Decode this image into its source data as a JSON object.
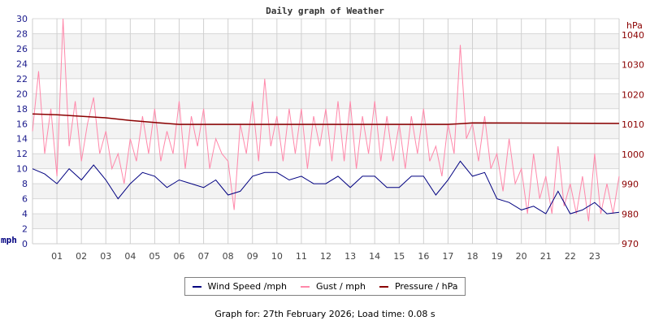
{
  "chart_data": {
    "type": "line",
    "title": "Daily graph of Weather",
    "x_ticks": [
      "01",
      "02",
      "03",
      "04",
      "05",
      "06",
      "07",
      "08",
      "09",
      "10",
      "11",
      "12",
      "13",
      "14",
      "15",
      "16",
      "17",
      "18",
      "19",
      "20",
      "21",
      "22",
      "23"
    ],
    "xlim_hours": [
      0,
      24
    ],
    "left_axis": {
      "label": "mph",
      "ylim": [
        0,
        30
      ],
      "ticks": [
        0,
        2,
        4,
        6,
        8,
        10,
        12,
        14,
        16,
        18,
        20,
        22,
        24,
        26,
        28,
        30
      ],
      "color": "#1a1a8c"
    },
    "right_axis": {
      "label": "hPa",
      "ylim": [
        970,
        1045.4
      ],
      "ticks": [
        970,
        980,
        990,
        1000,
        1010,
        1020,
        1030,
        1040
      ],
      "color": "#8b0000"
    },
    "grid": true,
    "series": [
      {
        "name": "Wind Speed /mph",
        "axis": "left",
        "color": "#000080",
        "x_step_hours": 0.5,
        "values": [
          10,
          9.3,
          8,
          10,
          8.5,
          10.5,
          8.5,
          6,
          8,
          9.5,
          9,
          7.5,
          8.5,
          8,
          7.5,
          8.5,
          6.5,
          7,
          9,
          9.5,
          9.5,
          8.5,
          9,
          8,
          8,
          9,
          7.5,
          9,
          9,
          7.5,
          7.5,
          9,
          9,
          6.5,
          8.5,
          11,
          9,
          9.5,
          6,
          5.5,
          4.5,
          5,
          4,
          7,
          4,
          4.5,
          5.5,
          4,
          4.2
        ]
      },
      {
        "name": "Gust / mph",
        "axis": "left",
        "color": "#ff88aa",
        "x_step_hours": 0.25,
        "values": [
          15,
          23,
          12,
          18,
          9,
          30,
          13,
          19,
          11,
          16,
          19.5,
          12,
          15,
          10,
          12,
          8,
          14,
          11,
          17,
          12,
          18,
          11,
          15,
          12,
          19,
          10,
          17,
          13,
          18,
          10,
          14,
          12,
          11,
          4.5,
          16,
          12,
          19,
          11,
          22,
          13,
          17,
          11,
          18,
          12,
          18,
          10,
          17,
          13,
          18,
          11,
          19,
          11,
          19,
          10,
          17,
          12,
          19,
          11,
          17,
          11,
          16,
          10,
          17,
          12,
          18,
          11,
          13,
          9,
          16,
          12,
          26.5,
          14,
          16,
          11,
          17,
          10,
          12,
          7,
          14,
          8,
          10,
          4,
          12,
          6,
          9,
          4,
          13,
          5,
          8,
          4,
          9,
          3,
          12,
          4,
          8,
          4,
          9
        ]
      },
      {
        "name": "Pressure / hPa",
        "axis": "right",
        "color": "#8b0000",
        "points": [
          [
            0,
            1013.5
          ],
          [
            1,
            1013.2
          ],
          [
            2,
            1012.7
          ],
          [
            3,
            1012.2
          ],
          [
            4,
            1011.3
          ],
          [
            5,
            1010.6
          ],
          [
            6,
            1010
          ],
          [
            17,
            1010
          ],
          [
            17.5,
            1010.2
          ],
          [
            18,
            1010.5
          ],
          [
            24,
            1010.3
          ]
        ]
      }
    ]
  },
  "legend": {
    "items": [
      {
        "label": "Wind Speed /mph",
        "color": "#000080"
      },
      {
        "label": "Gust / mph",
        "color": "#ff88aa"
      },
      {
        "label": "Pressure / hPa",
        "color": "#8b0000"
      }
    ]
  },
  "footer": {
    "text": "Graph for: 27th February 2026; Load time: 0.08 s"
  }
}
